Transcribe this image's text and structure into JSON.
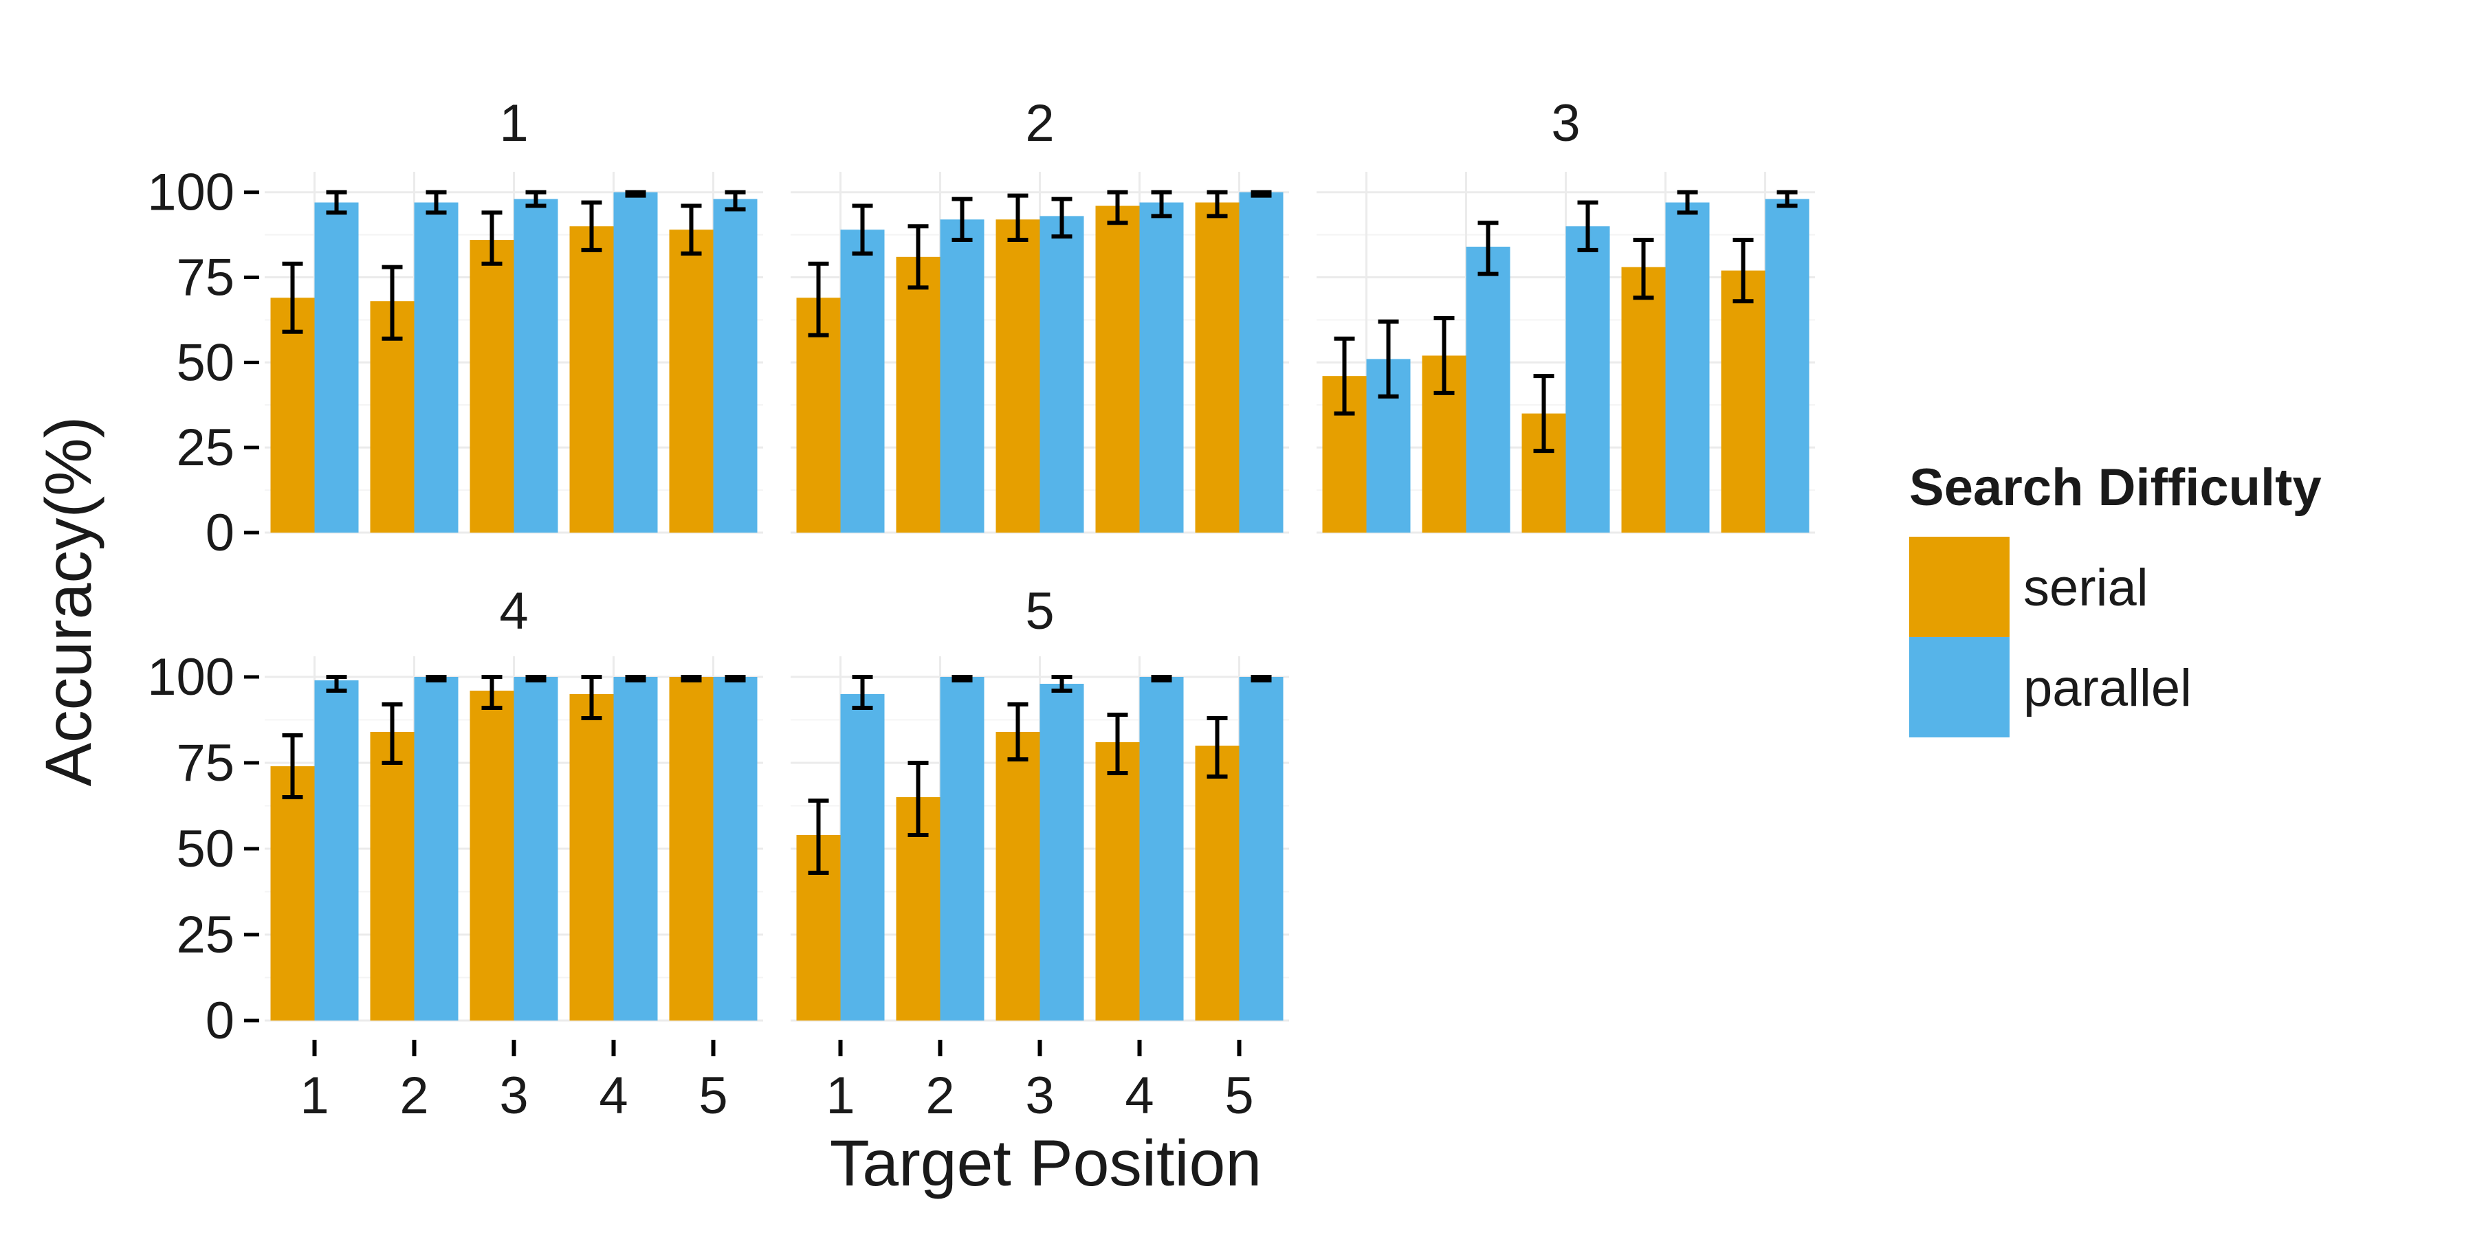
{
  "chart_data": {
    "type": "bar",
    "facet_titles": [
      "1",
      "2",
      "3",
      "4",
      "5"
    ],
    "xlabel": "Target Position",
    "ylabel": "Accuracy(%)",
    "categories": [
      "1",
      "2",
      "3",
      "4",
      "5"
    ],
    "y_ticks": [
      "0",
      "25",
      "50",
      "75",
      "100"
    ],
    "ylim": [
      0,
      100
    ],
    "grid": true,
    "legend": {
      "title": "Search Difficulty",
      "placement": "right",
      "entries": [
        "serial",
        "parallel"
      ]
    },
    "colors": {
      "serial": "#E69F00",
      "parallel": "#56B4E9"
    },
    "facets": [
      {
        "title": "1",
        "series": [
          {
            "name": "serial",
            "values": [
              69,
              68,
              86,
              90,
              89
            ],
            "err_low": [
              59,
              57,
              79,
              83,
              82
            ],
            "err_high": [
              79,
              78,
              94,
              97,
              96
            ]
          },
          {
            "name": "parallel",
            "values": [
              97,
              97,
              98,
              100,
              98
            ],
            "err_low": [
              94,
              94,
              96,
              99,
              95
            ],
            "err_high": [
              100,
              100,
              100,
              100,
              100
            ]
          }
        ]
      },
      {
        "title": "2",
        "series": [
          {
            "name": "serial",
            "values": [
              69,
              81,
              92,
              96,
              97
            ],
            "err_low": [
              58,
              72,
              86,
              91,
              93
            ],
            "err_high": [
              79,
              90,
              99,
              100,
              100
            ]
          },
          {
            "name": "parallel",
            "values": [
              89,
              92,
              93,
              97,
              100
            ],
            "err_low": [
              82,
              86,
              87,
              93,
              99
            ],
            "err_high": [
              96,
              98,
              98,
              100,
              100
            ]
          }
        ]
      },
      {
        "title": "3",
        "series": [
          {
            "name": "serial",
            "values": [
              46,
              52,
              35,
              78,
              77
            ],
            "err_low": [
              35,
              41,
              24,
              69,
              68
            ],
            "err_high": [
              57,
              63,
              46,
              86,
              86
            ]
          },
          {
            "name": "parallel",
            "values": [
              51,
              84,
              90,
              97,
              98
            ],
            "err_low": [
              40,
              76,
              83,
              94,
              96
            ],
            "err_high": [
              62,
              91,
              97,
              100,
              100
            ]
          }
        ]
      },
      {
        "title": "4",
        "series": [
          {
            "name": "serial",
            "values": [
              74,
              84,
              96,
              95,
              100
            ],
            "err_low": [
              65,
              75,
              91,
              88,
              99
            ],
            "err_high": [
              83,
              92,
              100,
              100,
              100
            ]
          },
          {
            "name": "parallel",
            "values": [
              99,
              100,
              100,
              100,
              100
            ],
            "err_low": [
              96,
              99,
              99,
              99,
              99
            ],
            "err_high": [
              100,
              100,
              100,
              100,
              100
            ]
          }
        ]
      },
      {
        "title": "5",
        "series": [
          {
            "name": "serial",
            "values": [
              54,
              65,
              84,
              81,
              80
            ],
            "err_low": [
              43,
              54,
              76,
              72,
              71
            ],
            "err_high": [
              64,
              75,
              92,
              89,
              88
            ]
          },
          {
            "name": "parallel",
            "values": [
              95,
              100,
              98,
              100,
              100
            ],
            "err_low": [
              91,
              99,
              96,
              99,
              99
            ],
            "err_high": [
              100,
              100,
              100,
              100,
              100
            ]
          }
        ]
      }
    ]
  }
}
